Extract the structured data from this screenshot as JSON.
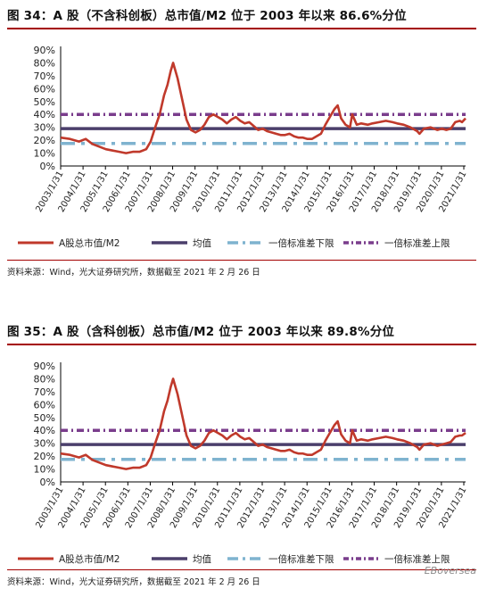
{
  "watermark": "EBoversea",
  "chart_data": [
    {
      "type": "line",
      "title": "图 34：A 股（不含科创板）总市值/M2 位于 2003 年以来 86.6%分位",
      "source": "资料来源：Wind，光大证券研究所，数据截至 2021 年 2 月 26 日",
      "y_ticks": [
        "0%",
        "10%",
        "20%",
        "30%",
        "40%",
        "50%",
        "60%",
        "70%",
        "80%",
        "90%"
      ],
      "ylim": [
        0,
        90
      ],
      "x_ticks": [
        "2003/1/31",
        "2004/1/31",
        "2005/1/31",
        "2006/1/31",
        "2007/1/31",
        "2008/1/31",
        "2009/1/31",
        "2010/1/31",
        "2011/1/31",
        "2012/1/31",
        "2013/1/31",
        "2014/1/31",
        "2015/1/31",
        "2016/1/31",
        "2017/1/31",
        "2018/1/31",
        "2019/1/31",
        "2020/1/31",
        "2021/1/31"
      ],
      "xlim": [
        2003.08,
        2021.16
      ],
      "series": [
        {
          "name": "A股总市值/M2",
          "color": "#c0392b",
          "x": [
            2003.08,
            2003.5,
            2003.9,
            2004.2,
            2004.5,
            2004.8,
            2005.1,
            2005.4,
            2005.7,
            2006.0,
            2006.3,
            2006.6,
            2006.9,
            2007.1,
            2007.3,
            2007.5,
            2007.7,
            2007.85,
            2008.0,
            2008.1,
            2008.3,
            2008.5,
            2008.7,
            2008.9,
            2009.1,
            2009.3,
            2009.5,
            2009.7,
            2009.9,
            2010.1,
            2010.3,
            2010.5,
            2010.7,
            2010.9,
            2011.1,
            2011.3,
            2011.5,
            2011.7,
            2011.9,
            2012.1,
            2012.3,
            2012.5,
            2012.7,
            2012.9,
            2013.1,
            2013.3,
            2013.5,
            2013.7,
            2013.9,
            2014.1,
            2014.3,
            2014.5,
            2014.7,
            2014.9,
            2015.1,
            2015.3,
            2015.45,
            2015.6,
            2015.8,
            2016.0,
            2016.1,
            2016.3,
            2016.5,
            2016.8,
            2017.0,
            2017.3,
            2017.6,
            2017.9,
            2018.1,
            2018.4,
            2018.7,
            2019.0,
            2019.1,
            2019.3,
            2019.6,
            2019.9,
            2020.1,
            2020.3,
            2020.5,
            2020.7,
            2020.9,
            2021.0,
            2021.16
          ],
          "values": [
            22,
            21,
            19,
            21,
            17,
            15,
            13,
            12,
            11,
            10,
            11,
            11,
            13,
            19,
            30,
            40,
            55,
            63,
            74,
            80,
            68,
            52,
            36,
            28,
            26,
            28,
            32,
            38,
            40,
            38,
            36,
            33,
            36,
            38,
            35,
            33,
            34,
            31,
            28,
            29,
            27,
            26,
            25,
            24,
            24,
            25,
            23,
            22,
            22,
            21,
            21,
            23,
            25,
            32,
            38,
            44,
            47,
            37,
            32,
            30,
            40,
            32,
            33,
            32,
            33,
            34,
            35,
            34,
            33,
            32,
            30,
            27,
            25,
            29,
            30,
            28,
            29,
            28,
            29,
            34,
            35,
            34,
            37
          ]
        },
        {
          "name": "均值",
          "color": "#4b3f6b",
          "values": [
            29
          ]
        },
        {
          "name": "一倍标准差下限",
          "color": "#7fb3cf",
          "values": [
            17.5
          ]
        },
        {
          "name": "一倍标准差上限",
          "color": "#7a3d8c",
          "values": [
            40
          ]
        }
      ],
      "legend": "bottom"
    },
    {
      "type": "line",
      "title": "图 35：A 股（含科创板）总市值/M2 位于 2003 年以来 89.8%分位",
      "source": "资料来源：Wind，光大证券研究所，数据截至 2021 年 2 月 26 日",
      "y_ticks": [
        "0%",
        "10%",
        "20%",
        "30%",
        "40%",
        "50%",
        "60%",
        "70%",
        "80%",
        "90%"
      ],
      "ylim": [
        0,
        90
      ],
      "x_ticks": [
        "2003/1/31",
        "2004/1/31",
        "2005/1/31",
        "2006/1/31",
        "2007/1/31",
        "2008/1/31",
        "2009/1/31",
        "2010/1/31",
        "2011/1/31",
        "2012/1/31",
        "2013/1/31",
        "2014/1/31",
        "2015/1/31",
        "2016/1/31",
        "2017/1/31",
        "2018/1/31",
        "2019/1/31",
        "2020/1/31",
        "2021/1/31"
      ],
      "xlim": [
        2003.08,
        2021.16
      ],
      "series": [
        {
          "name": "A股总市值/M2",
          "color": "#c0392b",
          "x": [
            2003.08,
            2003.5,
            2003.9,
            2004.2,
            2004.5,
            2004.8,
            2005.1,
            2005.4,
            2005.7,
            2006.0,
            2006.3,
            2006.6,
            2006.9,
            2007.1,
            2007.3,
            2007.5,
            2007.7,
            2007.85,
            2008.0,
            2008.1,
            2008.3,
            2008.5,
            2008.7,
            2008.9,
            2009.1,
            2009.3,
            2009.5,
            2009.7,
            2009.9,
            2010.1,
            2010.3,
            2010.5,
            2010.7,
            2010.9,
            2011.1,
            2011.3,
            2011.5,
            2011.7,
            2011.9,
            2012.1,
            2012.3,
            2012.5,
            2012.7,
            2012.9,
            2013.1,
            2013.3,
            2013.5,
            2013.7,
            2013.9,
            2014.1,
            2014.3,
            2014.5,
            2014.7,
            2014.9,
            2015.1,
            2015.3,
            2015.45,
            2015.6,
            2015.8,
            2016.0,
            2016.1,
            2016.3,
            2016.5,
            2016.8,
            2017.0,
            2017.3,
            2017.6,
            2017.9,
            2018.1,
            2018.4,
            2018.7,
            2019.0,
            2019.1,
            2019.3,
            2019.6,
            2019.9,
            2020.1,
            2020.3,
            2020.5,
            2020.7,
            2020.9,
            2021.0,
            2021.16
          ],
          "values": [
            22,
            21,
            19,
            21,
            17,
            15,
            13,
            12,
            11,
            10,
            11,
            11,
            13,
            19,
            30,
            40,
            55,
            63,
            74,
            80,
            68,
            52,
            36,
            28,
            26,
            28,
            32,
            38,
            40,
            38,
            36,
            33,
            36,
            38,
            35,
            33,
            34,
            31,
            28,
            29,
            27,
            26,
            25,
            24,
            24,
            25,
            23,
            22,
            22,
            21,
            21,
            23,
            25,
            32,
            38,
            44,
            47,
            37,
            32,
            30,
            40,
            32,
            33,
            32,
            33,
            34,
            35,
            34,
            33,
            32,
            30,
            27,
            25,
            29,
            30,
            28,
            29,
            30,
            31,
            35,
            36,
            36,
            38
          ]
        },
        {
          "name": "均值",
          "color": "#4b3f6b",
          "values": [
            29
          ]
        },
        {
          "name": "一倍标准差下限",
          "color": "#7fb3cf",
          "values": [
            17.5
          ]
        },
        {
          "name": "一倍标准差上限",
          "color": "#7a3d8c",
          "values": [
            40
          ]
        }
      ],
      "legend": "bottom"
    }
  ]
}
